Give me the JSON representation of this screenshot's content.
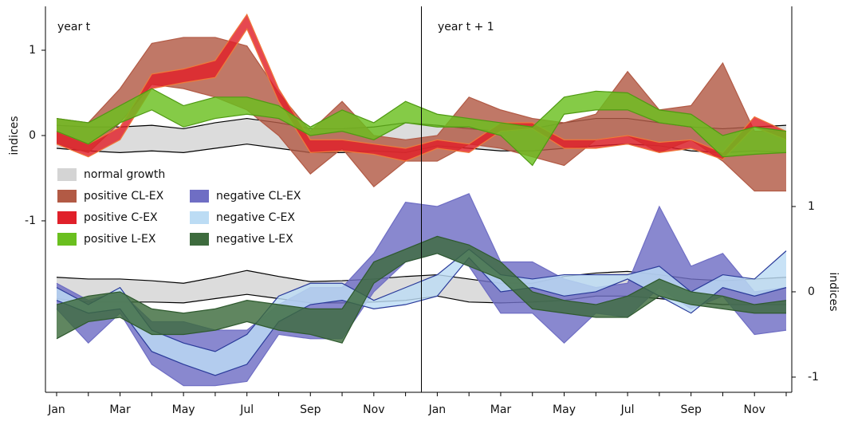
{
  "chart_data": {
    "type": "band",
    "ylabel": "indices",
    "y2label": "indices",
    "annotations": [
      "year t",
      "year t + 1"
    ],
    "categories": [
      "Jan",
      null,
      "Mar",
      null,
      "May",
      null,
      "Jul",
      null,
      "Sep",
      null,
      "Nov",
      null,
      "Jan",
      null,
      "Mar",
      null,
      "May",
      null,
      "Jul",
      null,
      "Sep",
      null,
      "Nov",
      null
    ],
    "ylim": [
      -3.01,
      1.514
    ],
    "yticks": [
      -1,
      0,
      1
    ],
    "y2lim": [
      -1.178,
      3.346
    ],
    "y2ticks": [
      -1,
      0,
      1
    ],
    "series": [
      {
        "name": "normal growth",
        "color": "#d4d4d4",
        "edge_color": "#000000",
        "upper": [
          0.12,
          0.1,
          0.1,
          0.12,
          0.08,
          0.15,
          0.2,
          0.15,
          0.08,
          0.08,
          0.1,
          0.15,
          0.12,
          0.08,
          0.05,
          0.08,
          0.15,
          0.2,
          0.2,
          0.15,
          0.1,
          0.08,
          0.1,
          0.12
        ],
        "lower": [
          -0.15,
          -0.18,
          -0.2,
          -0.18,
          -0.2,
          -0.15,
          -0.1,
          -0.15,
          -0.2,
          -0.2,
          -0.18,
          -0.2,
          -0.12,
          -0.15,
          -0.18,
          -0.18,
          -0.15,
          -0.12,
          -0.1,
          -0.12,
          -0.18,
          -0.2,
          -0.18,
          -0.2
        ]
      },
      {
        "name": "positive CL-EX",
        "color": "#b25a45",
        "edge_color": "#b25a45",
        "upper": [
          0.2,
          0.15,
          0.55,
          1.08,
          1.15,
          1.15,
          1.05,
          0.5,
          0.05,
          0.4,
          0.0,
          -0.05,
          0.0,
          0.45,
          0.3,
          0.2,
          0.15,
          0.25,
          0.75,
          0.3,
          0.35,
          0.85,
          0.05,
          0.05
        ],
        "lower": [
          -0.1,
          -0.2,
          0.15,
          0.6,
          0.55,
          0.45,
          0.3,
          0.0,
          -0.45,
          -0.15,
          -0.6,
          -0.3,
          -0.3,
          -0.1,
          -0.15,
          -0.25,
          -0.35,
          -0.05,
          0.0,
          -0.2,
          -0.05,
          -0.3,
          -0.65,
          -0.65
        ]
      },
      {
        "name": "positive C-EX",
        "color": "#e0202a",
        "edge_color": "#f07a3a",
        "upper": [
          0.05,
          -0.1,
          0.1,
          0.72,
          0.78,
          0.88,
          1.42,
          0.55,
          -0.05,
          -0.05,
          -0.1,
          -0.15,
          -0.05,
          -0.1,
          0.15,
          0.15,
          -0.05,
          -0.05,
          0.0,
          -0.08,
          -0.05,
          -0.2,
          0.22,
          0.05
        ],
        "lower": [
          -0.1,
          -0.25,
          -0.05,
          0.55,
          0.62,
          0.68,
          1.25,
          0.4,
          -0.2,
          -0.18,
          -0.22,
          -0.3,
          -0.15,
          -0.2,
          0.05,
          0.08,
          -0.15,
          -0.15,
          -0.1,
          -0.2,
          -0.15,
          -0.28,
          0.1,
          -0.05
        ]
      },
      {
        "name": "positive L-EX",
        "color": "#6abf1f",
        "edge_color": "#4f9a12",
        "upper": [
          0.2,
          0.15,
          0.35,
          0.55,
          0.35,
          0.45,
          0.45,
          0.35,
          0.1,
          0.3,
          0.15,
          0.4,
          0.25,
          0.2,
          0.15,
          0.1,
          0.45,
          0.52,
          0.5,
          0.3,
          0.25,
          0.0,
          0.1,
          0.05
        ],
        "lower": [
          0.05,
          -0.1,
          0.15,
          0.3,
          0.1,
          0.2,
          0.25,
          0.2,
          0.0,
          0.05,
          -0.05,
          0.15,
          0.1,
          0.1,
          0.0,
          -0.35,
          0.25,
          0.3,
          0.3,
          0.15,
          0.1,
          -0.25,
          -0.22,
          -0.2
        ]
      },
      {
        "color": "#d4d4d4",
        "edge_color": "#000000",
        "axis": "y2",
        "upper": [
          0.17,
          0.15,
          0.15,
          0.13,
          0.1,
          0.17,
          0.25,
          0.18,
          0.12,
          0.13,
          0.15,
          0.18,
          0.2,
          0.15,
          0.1,
          0.1,
          0.18,
          0.22,
          0.24,
          0.2,
          0.15,
          0.13,
          0.15,
          0.17
        ],
        "lower": [
          -0.08,
          -0.12,
          -0.12,
          -0.12,
          -0.13,
          -0.08,
          -0.03,
          -0.08,
          -0.13,
          -0.13,
          -0.12,
          -0.1,
          -0.05,
          -0.12,
          -0.13,
          -0.12,
          -0.1,
          -0.05,
          -0.05,
          -0.08,
          -0.12,
          -0.15,
          -0.15,
          -0.15
        ]
      },
      {
        "name": "negative CL-EX",
        "color": "#6f6ec4",
        "edge_color": "#6f6ec4",
        "axis": "y2",
        "upper": [
          0.1,
          -0.1,
          0.0,
          -0.35,
          -0.35,
          -0.45,
          -0.45,
          -0.15,
          0.05,
          0.05,
          0.45,
          1.05,
          1.0,
          1.15,
          0.35,
          0.35,
          0.15,
          0.05,
          0.1,
          1.0,
          0.3,
          0.45,
          0.0,
          0.05
        ],
        "lower": [
          -0.2,
          -0.6,
          -0.25,
          -0.85,
          -1.1,
          -1.1,
          -1.05,
          -0.5,
          -0.55,
          -0.55,
          0.0,
          0.35,
          0.45,
          0.3,
          -0.25,
          -0.25,
          -0.6,
          -0.25,
          -0.3,
          0.05,
          -0.2,
          -0.05,
          -0.5,
          -0.45
        ]
      },
      {
        "name": "negative C-EX",
        "color": "#bcdcf4",
        "edge_color": "#2a3a9a",
        "axis": "y2",
        "upper": [
          0.05,
          -0.15,
          0.05,
          -0.45,
          -0.6,
          -0.7,
          -0.5,
          -0.05,
          0.1,
          0.1,
          -0.1,
          0.05,
          0.2,
          0.5,
          0.2,
          0.15,
          0.2,
          0.2,
          0.2,
          0.3,
          0.0,
          0.2,
          0.15,
          0.48
        ],
        "lower": [
          -0.1,
          -0.25,
          -0.2,
          -0.7,
          -0.85,
          -0.98,
          -0.85,
          -0.35,
          -0.15,
          -0.1,
          -0.2,
          -0.15,
          -0.05,
          0.4,
          0.0,
          0.05,
          -0.05,
          0.0,
          0.15,
          -0.05,
          -0.25,
          0.05,
          -0.05,
          0.05
        ]
      },
      {
        "name": "negative L-EX",
        "color": "#3d6b3d",
        "edge_color": "#2f5a2f",
        "axis": "y2",
        "upper": [
          -0.15,
          -0.05,
          0.0,
          -0.2,
          -0.25,
          -0.2,
          -0.1,
          -0.15,
          -0.2,
          -0.2,
          0.35,
          0.5,
          0.65,
          0.55,
          0.35,
          0.0,
          -0.1,
          -0.15,
          -0.05,
          0.15,
          0.0,
          -0.05,
          -0.15,
          -0.1
        ],
        "lower": [
          -0.55,
          -0.35,
          -0.3,
          -0.5,
          -0.5,
          -0.45,
          -0.35,
          -0.45,
          -0.5,
          -0.6,
          0.1,
          0.35,
          0.45,
          0.3,
          0.15,
          -0.2,
          -0.25,
          -0.3,
          -0.3,
          -0.05,
          -0.15,
          -0.2,
          -0.25,
          -0.25
        ]
      }
    ]
  }
}
